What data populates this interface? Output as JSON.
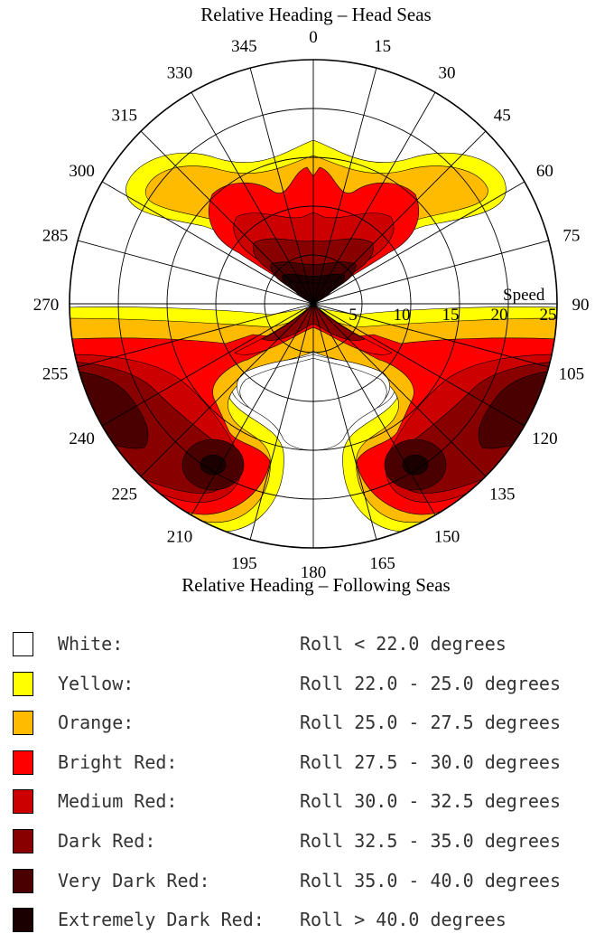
{
  "chart_data": {
    "type": "polar contour",
    "title": "Relative Heading – Head Seas",
    "bottom_title": "Relative Heading – Following Seas",
    "angular_axis": {
      "unit": "degrees",
      "ticks": [
        "0",
        "15",
        "30",
        "45",
        "60",
        "75",
        "90",
        "105",
        "120",
        "135",
        "150",
        "165",
        "180",
        "195",
        "210",
        "225",
        "240",
        "255",
        "270",
        "285",
        "300",
        "315",
        "330",
        "345"
      ],
      "zero_at": "top",
      "direction": "clockwise"
    },
    "radial_axis": {
      "label": "Speed",
      "ticks": [
        "5",
        "10",
        "15",
        "20",
        "25"
      ],
      "range": [
        0,
        25
      ]
    },
    "legend": [
      {
        "name": "White:",
        "range": "Roll < 22.0 degrees",
        "color": "#ffffff"
      },
      {
        "name": "Yellow:",
        "range": "Roll 22.0 - 25.0 degrees",
        "color": "#ffff00"
      },
      {
        "name": "Orange:",
        "range": "Roll 25.0 - 27.5 degrees",
        "color": "#ffbb00"
      },
      {
        "name": "Bright Red:",
        "range": "Roll 27.5 - 30.0 degrees",
        "color": "#ff0000"
      },
      {
        "name": "Medium Red:",
        "range": "Roll 30.0 - 32.5 degrees",
        "color": "#cc0000"
      },
      {
        "name": "Dark Red:",
        "range": "Roll 32.5 - 35.0 degrees",
        "color": "#880000"
      },
      {
        "name": "Very Dark Red:",
        "range": "Roll 35.0 - 40.0 degrees",
        "color": "#4a0000"
      },
      {
        "name": "Extremely Dark Red:",
        "range": "Roll > 40.0 degrees",
        "color": "#1a0000"
      }
    ]
  }
}
